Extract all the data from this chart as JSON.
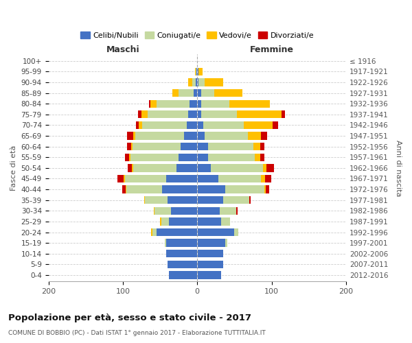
{
  "age_groups": [
    "0-4",
    "5-9",
    "10-14",
    "15-19",
    "20-24",
    "25-29",
    "30-34",
    "35-39",
    "40-44",
    "45-49",
    "50-54",
    "55-59",
    "60-64",
    "65-69",
    "70-74",
    "75-79",
    "80-84",
    "85-89",
    "90-94",
    "95-99",
    "100+"
  ],
  "birth_years": [
    "2012-2016",
    "2007-2011",
    "2002-2006",
    "1997-2001",
    "1992-1996",
    "1987-1991",
    "1982-1986",
    "1977-1981",
    "1972-1976",
    "1967-1971",
    "1962-1966",
    "1957-1961",
    "1952-1956",
    "1947-1951",
    "1942-1946",
    "1937-1941",
    "1932-1936",
    "1927-1931",
    "1922-1926",
    "1917-1921",
    "≤ 1916"
  ],
  "colors": {
    "celibe": "#4472c4",
    "coniugato": "#c5d9a0",
    "vedovo": "#ffc000",
    "divorziato": "#cc0000"
  },
  "m_cel": [
    38,
    40,
    42,
    42,
    55,
    38,
    35,
    40,
    47,
    42,
    28,
    25,
    22,
    18,
    14,
    12,
    10,
    5,
    2,
    1,
    0
  ],
  "m_con": [
    0,
    0,
    0,
    2,
    5,
    10,
    22,
    30,
    48,
    55,
    58,
    65,
    65,
    65,
    60,
    55,
    45,
    20,
    5,
    1,
    0
  ],
  "m_ved": [
    0,
    0,
    0,
    0,
    2,
    2,
    1,
    1,
    1,
    2,
    2,
    2,
    2,
    3,
    5,
    8,
    8,
    8,
    5,
    1,
    0
  ],
  "m_div": [
    0,
    0,
    0,
    0,
    0,
    0,
    0,
    0,
    5,
    8,
    5,
    5,
    5,
    8,
    3,
    5,
    2,
    0,
    0,
    0,
    0
  ],
  "f_nub": [
    32,
    35,
    35,
    38,
    50,
    32,
    30,
    35,
    38,
    28,
    18,
    15,
    15,
    10,
    8,
    5,
    5,
    5,
    2,
    2,
    0
  ],
  "f_con": [
    0,
    0,
    0,
    2,
    5,
    12,
    22,
    35,
    52,
    58,
    70,
    62,
    60,
    58,
    55,
    48,
    38,
    18,
    8,
    0,
    0
  ],
  "f_ved": [
    0,
    0,
    0,
    0,
    0,
    0,
    0,
    0,
    2,
    5,
    5,
    8,
    10,
    18,
    38,
    60,
    55,
    38,
    25,
    5,
    1
  ],
  "f_div": [
    0,
    0,
    0,
    0,
    0,
    0,
    2,
    2,
    5,
    8,
    10,
    5,
    5,
    8,
    8,
    5,
    0,
    0,
    0,
    0,
    0
  ],
  "xlim": [
    -200,
    200
  ],
  "xticks": [
    -200,
    -100,
    0,
    100,
    200
  ],
  "xticklabels": [
    "200",
    "100",
    "0",
    "100",
    "200"
  ],
  "title": "Popolazione per età, sesso e stato civile - 2017",
  "subtitle": "COMUNE DI BOBBIO (PC) - Dati ISTAT 1° gennaio 2017 - Elaborazione TUTTITALIA.IT",
  "ylabel_left": "Fasce di età",
  "ylabel_right": "Anni di nascita",
  "label_maschi": "Maschi",
  "label_femmine": "Femmine",
  "legend_labels": [
    "Celibi/Nubili",
    "Coniugati/e",
    "Vedovi/e",
    "Divorziati/e"
  ],
  "background_color": "#ffffff",
  "bar_height": 0.72
}
